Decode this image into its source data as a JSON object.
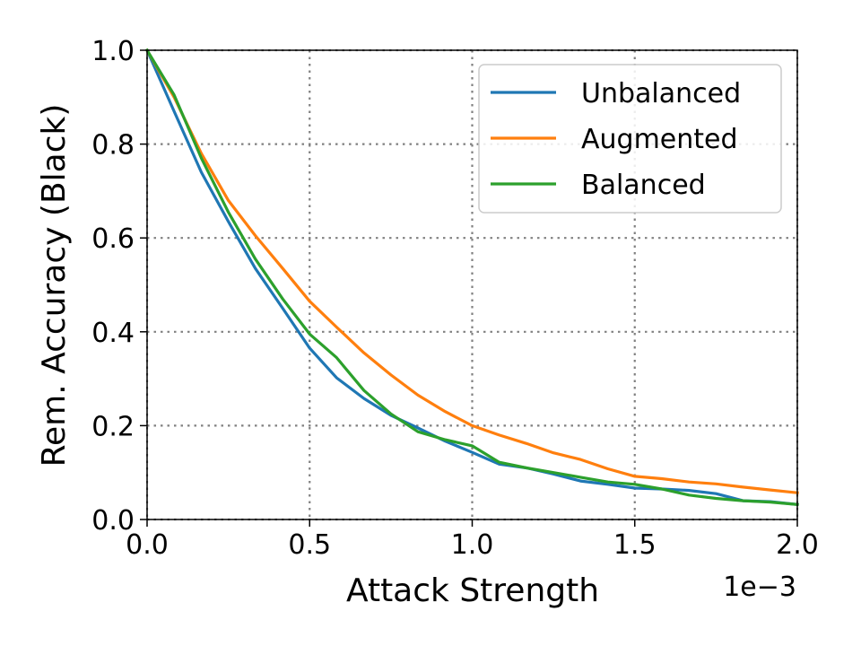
{
  "chart_data": {
    "type": "line",
    "title": "",
    "xlabel": "Attack Strength",
    "ylabel": "Rem. Accuracy (Black)",
    "x_offset_label": "1e−3",
    "xlim": [
      0.0,
      2.0
    ],
    "ylim": [
      0.0,
      1.0
    ],
    "x_ticks": [
      0.0,
      0.5,
      1.0,
      1.5,
      2.0
    ],
    "x_tick_labels": [
      "0.0",
      "0.5",
      "1.0",
      "1.5",
      "2.0"
    ],
    "y_ticks": [
      0.0,
      0.2,
      0.4,
      0.6,
      0.8,
      1.0
    ],
    "y_tick_labels": [
      "0.0",
      "0.2",
      "0.4",
      "0.6",
      "0.8",
      "1.0"
    ],
    "grid": true,
    "legend_position": "top-right",
    "x": [
      0.0,
      0.083,
      0.167,
      0.25,
      0.333,
      0.417,
      0.5,
      0.583,
      0.667,
      0.75,
      0.833,
      0.917,
      1.0,
      1.083,
      1.167,
      1.25,
      1.333,
      1.417,
      1.5,
      1.583,
      1.667,
      1.75,
      1.833,
      1.917,
      2.0
    ],
    "series": [
      {
        "name": "Unbalanced",
        "color": "#1f77b4",
        "values": [
          1.0,
          0.87,
          0.74,
          0.635,
          0.535,
          0.45,
          0.365,
          0.302,
          0.258,
          0.222,
          0.195,
          0.167,
          0.143,
          0.118,
          0.11,
          0.097,
          0.082,
          0.075,
          0.067,
          0.065,
          0.062,
          0.055,
          0.04,
          0.038,
          0.032
        ]
      },
      {
        "name": "Augmented",
        "color": "#ff7f0e",
        "values": [
          1.0,
          0.9,
          0.78,
          0.68,
          0.605,
          0.535,
          0.465,
          0.41,
          0.355,
          0.308,
          0.265,
          0.23,
          0.2,
          0.18,
          0.162,
          0.142,
          0.128,
          0.108,
          0.092,
          0.087,
          0.08,
          0.076,
          0.069,
          0.063,
          0.057
        ]
      },
      {
        "name": "Balanced",
        "color": "#2ca02c",
        "values": [
          1.0,
          0.905,
          0.77,
          0.655,
          0.555,
          0.47,
          0.395,
          0.345,
          0.275,
          0.225,
          0.187,
          0.17,
          0.157,
          0.122,
          0.11,
          0.1,
          0.09,
          0.08,
          0.075,
          0.065,
          0.052,
          0.045,
          0.04,
          0.037,
          0.032
        ]
      }
    ]
  }
}
